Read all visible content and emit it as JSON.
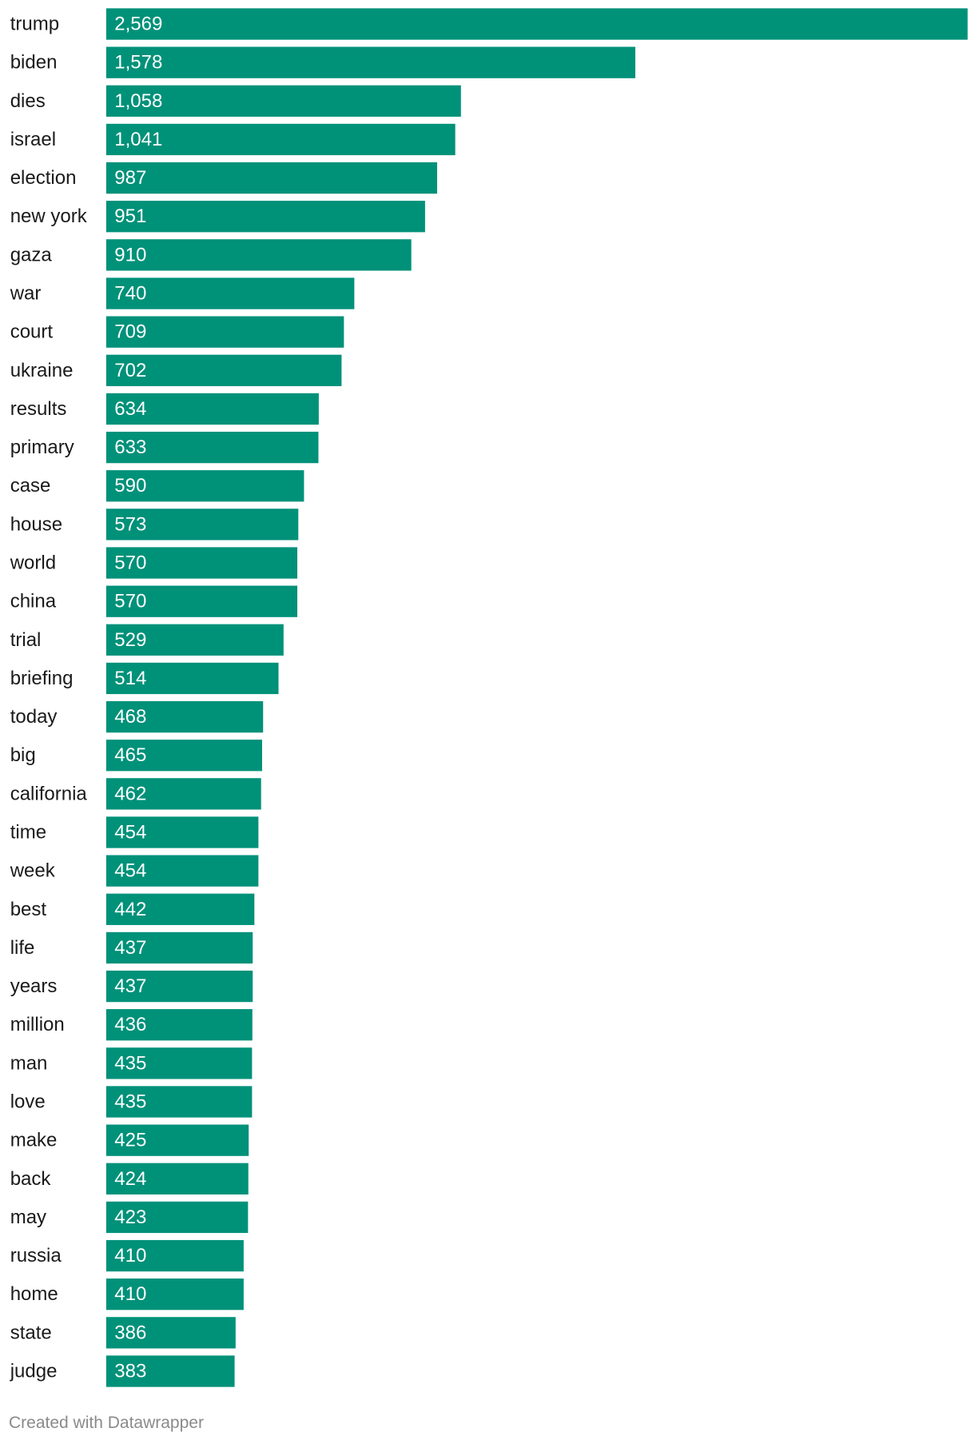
{
  "chart_data": {
    "type": "bar",
    "orientation": "horizontal",
    "categories": [
      "trump",
      "biden",
      "dies",
      "israel",
      "election",
      "new york",
      "gaza",
      "war",
      "court",
      "ukraine",
      "results",
      "primary",
      "case",
      "house",
      "world",
      "china",
      "trial",
      "briefing",
      "today",
      "big",
      "california",
      "time",
      "week",
      "best",
      "life",
      "years",
      "million",
      "man",
      "love",
      "make",
      "back",
      "may",
      "russia",
      "home",
      "state",
      "judge"
    ],
    "values": [
      2569,
      1578,
      1058,
      1041,
      987,
      951,
      910,
      740,
      709,
      702,
      634,
      633,
      590,
      573,
      570,
      570,
      529,
      514,
      468,
      465,
      462,
      454,
      454,
      442,
      437,
      437,
      436,
      435,
      435,
      425,
      424,
      423,
      410,
      410,
      386,
      383
    ],
    "value_labels": [
      "2,569",
      "1,578",
      "1,058",
      "1,041",
      "987",
      "951",
      "910",
      "740",
      "709",
      "702",
      "634",
      "633",
      "590",
      "573",
      "570",
      "570",
      "529",
      "514",
      "468",
      "465",
      "462",
      "454",
      "454",
      "442",
      "437",
      "437",
      "436",
      "435",
      "435",
      "425",
      "424",
      "423",
      "410",
      "410",
      "386",
      "383"
    ],
    "bar_color": "#009179",
    "label_color": "#ffffff",
    "xlim": [
      0,
      2569
    ],
    "grid": false,
    "legend": "none"
  },
  "footer": {
    "credit": "Created with Datawrapper"
  }
}
